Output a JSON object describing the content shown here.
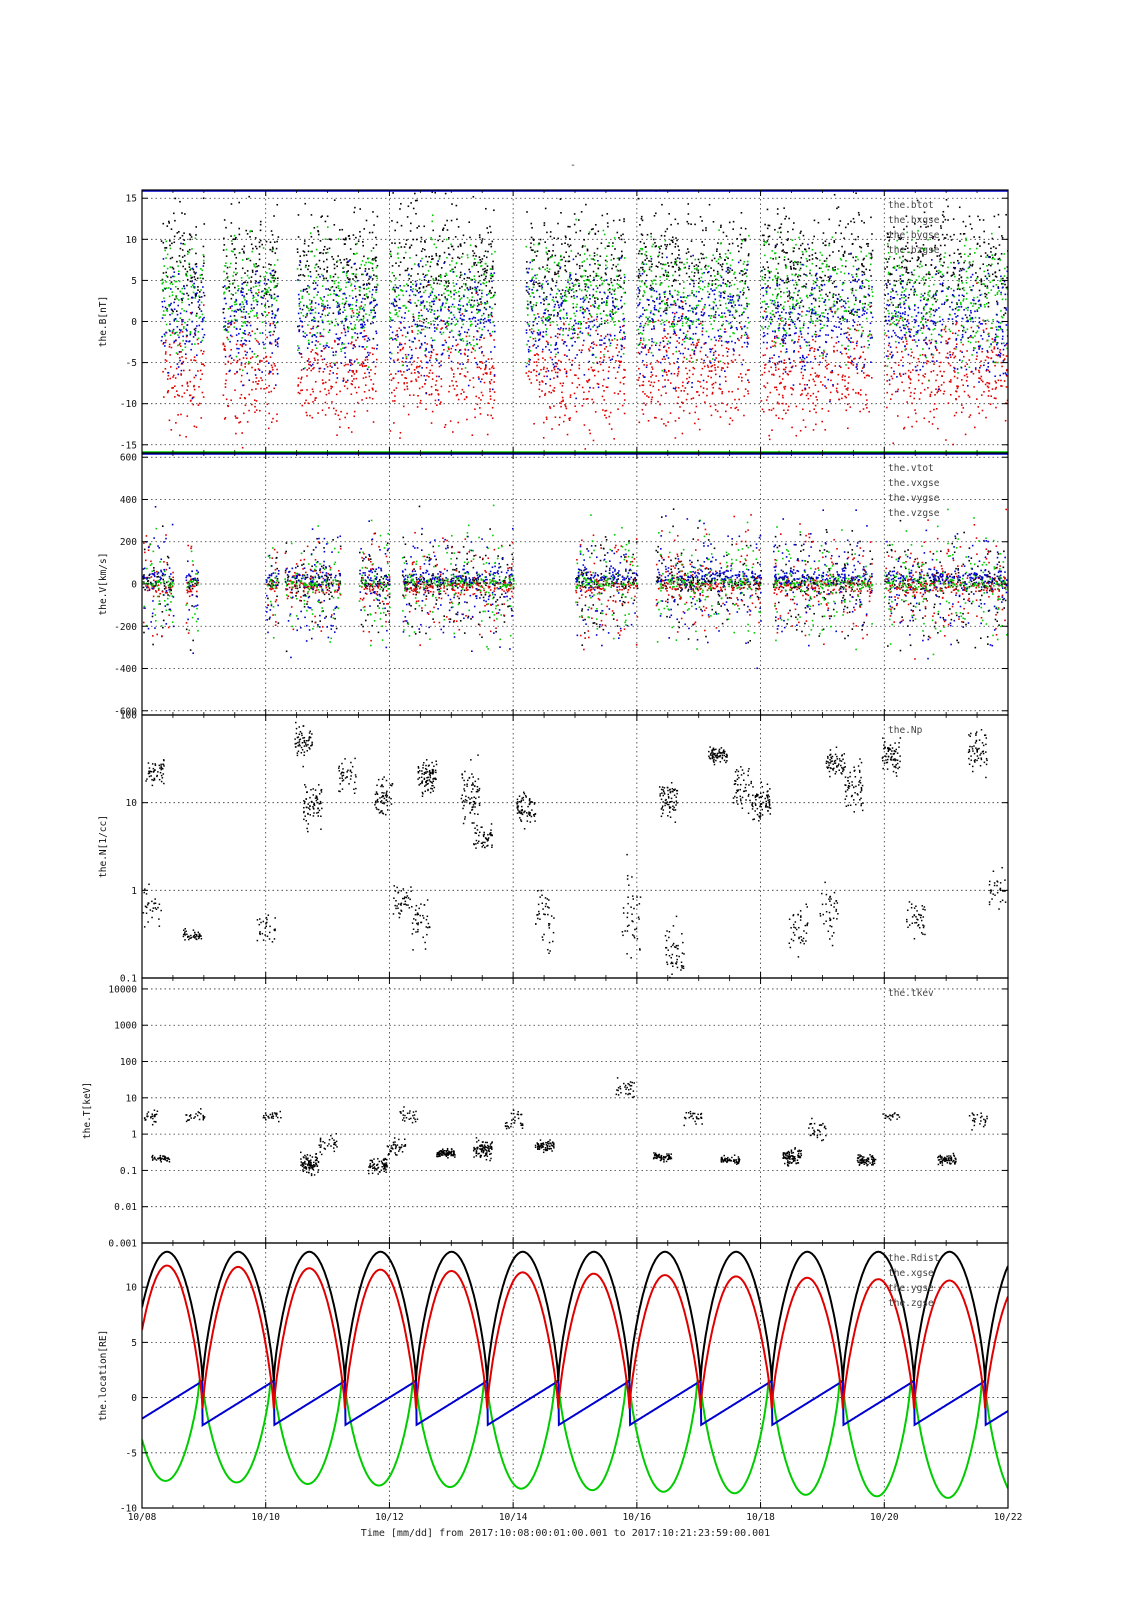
{
  "page": {
    "top_mark": "-"
  },
  "colors": {
    "black": "#000000",
    "red": "#e00000",
    "green": "#00cc00",
    "blue": "#0000d0"
  },
  "chart_data": [
    {
      "type": "scatter",
      "ylabel": "the.B[nT]",
      "ylim": [
        -16,
        16
      ],
      "yscale": "linear",
      "yticks": [
        -15,
        -10,
        -5,
        0,
        5,
        10,
        15
      ],
      "grid": true,
      "legend_position": "top-right",
      "series": [
        {
          "name": "the.btot",
          "color": "#000000"
        },
        {
          "name": "the.bxgse",
          "color": "#e00000"
        },
        {
          "name": "the.bygse",
          "color": "#00cc00"
        },
        {
          "name": "the.bzgse",
          "color": "#0000d0"
        }
      ],
      "active_intervals_day": [
        [
          0.3,
          1.0
        ],
        [
          1.3,
          2.2
        ],
        [
          2.5,
          3.8
        ],
        [
          4.0,
          5.7
        ],
        [
          6.2,
          7.8
        ],
        [
          8.0,
          9.8
        ],
        [
          10.0,
          11.8
        ],
        [
          12.0,
          14.0
        ]
      ]
    },
    {
      "type": "scatter",
      "ylabel": "the.V[km/s]",
      "ylim": [
        -620,
        620
      ],
      "yscale": "linear",
      "yticks": [
        -600,
        -400,
        -200,
        0,
        200,
        400,
        600
      ],
      "grid": true,
      "legend_position": "top-right",
      "series": [
        {
          "name": "the.vtot",
          "color": "#000000"
        },
        {
          "name": "the.vxgse",
          "color": "#e00000"
        },
        {
          "name": "the.vygse",
          "color": "#00cc00"
        },
        {
          "name": "the.vzgse",
          "color": "#0000d0"
        }
      ],
      "active_intervals_day": [
        [
          0.0,
          0.5
        ],
        [
          0.7,
          0.9
        ],
        [
          2.0,
          2.2
        ],
        [
          2.3,
          3.2
        ],
        [
          3.5,
          4.0
        ],
        [
          4.2,
          6.0
        ],
        [
          7.0,
          8.0
        ],
        [
          8.3,
          10.0
        ],
        [
          10.2,
          11.8
        ],
        [
          12.0,
          14.0
        ]
      ]
    },
    {
      "type": "scatter",
      "ylabel": "the.N[1/cc]",
      "ylim": [
        0.1,
        100
      ],
      "yscale": "log",
      "yticks": [
        0.1,
        1,
        10,
        100
      ],
      "grid": true,
      "legend_position": "top-right",
      "series": [
        {
          "name": "the.Np",
          "color": "#000000"
        }
      ],
      "clusters": [
        {
          "day": 0.2,
          "log_y": 1.35,
          "spread": 0.15,
          "count": 50
        },
        {
          "day": 0.15,
          "log_y": -0.15,
          "spread": 0.2,
          "count": 30
        },
        {
          "day": 0.8,
          "log_y": -0.5,
          "spread": 0.08,
          "count": 40
        },
        {
          "day": 2.0,
          "log_y": -0.4,
          "spread": 0.2,
          "count": 30
        },
        {
          "day": 2.6,
          "log_y": 1.7,
          "spread": 0.2,
          "count": 60
        },
        {
          "day": 2.75,
          "log_y": 1.0,
          "spread": 0.25,
          "count": 70
        },
        {
          "day": 3.3,
          "log_y": 1.3,
          "spread": 0.2,
          "count": 40
        },
        {
          "day": 3.9,
          "log_y": 1.1,
          "spread": 0.2,
          "count": 60
        },
        {
          "day": 4.2,
          "log_y": -0.1,
          "spread": 0.2,
          "count": 40
        },
        {
          "day": 4.6,
          "log_y": 1.3,
          "spread": 0.2,
          "count": 90
        },
        {
          "day": 4.5,
          "log_y": -0.4,
          "spread": 0.3,
          "count": 40
        },
        {
          "day": 5.3,
          "log_y": 1.1,
          "spread": 0.3,
          "count": 70
        },
        {
          "day": 5.5,
          "log_y": 0.6,
          "spread": 0.15,
          "count": 50
        },
        {
          "day": 6.2,
          "log_y": 0.95,
          "spread": 0.15,
          "count": 70
        },
        {
          "day": 6.5,
          "log_y": -0.3,
          "spread": 0.4,
          "count": 40
        },
        {
          "day": 7.9,
          "log_y": -0.3,
          "spread": 0.5,
          "count": 40
        },
        {
          "day": 8.5,
          "log_y": 1.05,
          "spread": 0.2,
          "count": 70
        },
        {
          "day": 8.6,
          "log_y": -0.7,
          "spread": 0.3,
          "count": 50
        },
        {
          "day": 9.3,
          "log_y": 1.55,
          "spread": 0.1,
          "count": 70
        },
        {
          "day": 9.7,
          "log_y": 1.2,
          "spread": 0.25,
          "count": 50
        },
        {
          "day": 10.0,
          "log_y": 1.0,
          "spread": 0.2,
          "count": 80
        },
        {
          "day": 10.6,
          "log_y": -0.4,
          "spread": 0.3,
          "count": 40
        },
        {
          "day": 11.2,
          "log_y": 1.45,
          "spread": 0.15,
          "count": 60
        },
        {
          "day": 11.1,
          "log_y": -0.2,
          "spread": 0.3,
          "count": 40
        },
        {
          "day": 11.5,
          "log_y": 1.2,
          "spread": 0.3,
          "count": 60
        },
        {
          "day": 12.1,
          "log_y": 1.55,
          "spread": 0.2,
          "count": 70
        },
        {
          "day": 12.5,
          "log_y": -0.3,
          "spread": 0.2,
          "count": 40
        },
        {
          "day": 13.5,
          "log_y": 1.6,
          "spread": 0.2,
          "count": 60
        },
        {
          "day": 13.8,
          "log_y": 0.0,
          "spread": 0.2,
          "count": 30
        }
      ]
    },
    {
      "type": "scatter",
      "ylabel": "the.T[keV]",
      "ylim": [
        0.001,
        20000
      ],
      "yscale": "log",
      "yticks": [
        0.001,
        0.01,
        0.1,
        1,
        10,
        100,
        1000,
        10000
      ],
      "ytick_labels": [
        "0.001",
        "0.01",
        "0.1",
        "1",
        "10",
        "100",
        "1000",
        "10000"
      ],
      "grid": true,
      "legend_position": "top-right",
      "series": [
        {
          "name": "the.tkev",
          "color": "#000000"
        }
      ],
      "clusters": [
        {
          "day": 0.1,
          "log_y": 0.5,
          "spread": 0.2,
          "count": 30
        },
        {
          "day": 0.3,
          "log_y": -0.65,
          "spread": 0.08,
          "count": 40
        },
        {
          "day": 0.85,
          "log_y": 0.5,
          "spread": 0.15,
          "count": 25
        },
        {
          "day": 2.1,
          "log_y": 0.5,
          "spread": 0.15,
          "count": 25
        },
        {
          "day": 2.7,
          "log_y": -0.8,
          "spread": 0.25,
          "count": 90
        },
        {
          "day": 3.0,
          "log_y": -0.2,
          "spread": 0.3,
          "count": 30
        },
        {
          "day": 3.8,
          "log_y": -0.85,
          "spread": 0.2,
          "count": 70
        },
        {
          "day": 4.1,
          "log_y": -0.3,
          "spread": 0.25,
          "count": 40
        },
        {
          "day": 4.3,
          "log_y": 0.5,
          "spread": 0.2,
          "count": 25
        },
        {
          "day": 4.9,
          "log_y": -0.5,
          "spread": 0.12,
          "count": 80
        },
        {
          "day": 5.5,
          "log_y": -0.4,
          "spread": 0.25,
          "count": 90
        },
        {
          "day": 6.0,
          "log_y": 0.4,
          "spread": 0.3,
          "count": 30
        },
        {
          "day": 6.5,
          "log_y": -0.3,
          "spread": 0.15,
          "count": 70
        },
        {
          "day": 7.8,
          "log_y": 1.3,
          "spread": 0.3,
          "count": 30
        },
        {
          "day": 8.4,
          "log_y": -0.6,
          "spread": 0.12,
          "count": 60
        },
        {
          "day": 8.9,
          "log_y": 0.5,
          "spread": 0.2,
          "count": 30
        },
        {
          "day": 9.5,
          "log_y": -0.7,
          "spread": 0.1,
          "count": 60
        },
        {
          "day": 10.5,
          "log_y": -0.6,
          "spread": 0.2,
          "count": 90
        },
        {
          "day": 10.9,
          "log_y": 0.2,
          "spread": 0.3,
          "count": 30
        },
        {
          "day": 11.7,
          "log_y": -0.7,
          "spread": 0.15,
          "count": 70
        },
        {
          "day": 12.1,
          "log_y": 0.5,
          "spread": 0.15,
          "count": 20
        },
        {
          "day": 13.0,
          "log_y": -0.7,
          "spread": 0.15,
          "count": 70
        },
        {
          "day": 13.5,
          "log_y": 0.4,
          "spread": 0.2,
          "count": 25
        }
      ]
    },
    {
      "type": "line",
      "ylabel": "the.location[RE]",
      "ylim": [
        -10,
        14
      ],
      "yscale": "linear",
      "yticks": [
        -10,
        -5,
        0,
        5,
        10
      ],
      "grid": true,
      "legend_position": "top-right",
      "series": [
        {
          "name": "the.Rdist",
          "color": "#000000"
        },
        {
          "name": "the.xgse",
          "color": "#e00000"
        },
        {
          "name": "the.ygse",
          "color": "#0000d0"
        },
        {
          "name": "the.zgse",
          "color": "#00cc00"
        }
      ],
      "orbit_period_days": 1.15,
      "orbit_phase_day": 0.45,
      "perigee_day": 0.98,
      "rdist_apogee": 13.2,
      "xgse_max": [
        12.0,
        10.5
      ],
      "ygse_range": [
        -2.5,
        1.5
      ],
      "zgse_min": [
        -7.5,
        -9.2
      ]
    }
  ],
  "x_axis": {
    "xlim_days": [
      0,
      14
    ],
    "ticks": [
      {
        "day": 0,
        "label": "10/08"
      },
      {
        "day": 2,
        "label": "10/10"
      },
      {
        "day": 4,
        "label": "10/12"
      },
      {
        "day": 6,
        "label": "10/14"
      },
      {
        "day": 8,
        "label": "10/16"
      },
      {
        "day": 10,
        "label": "10/18"
      },
      {
        "day": 12,
        "label": "10/20"
      },
      {
        "day": 14,
        "label": "10/22"
      }
    ],
    "caption": "Time [mm/dd]  from 2017:10:08:00:01:00.001  to  2017:10:21:23:59:00.001"
  }
}
